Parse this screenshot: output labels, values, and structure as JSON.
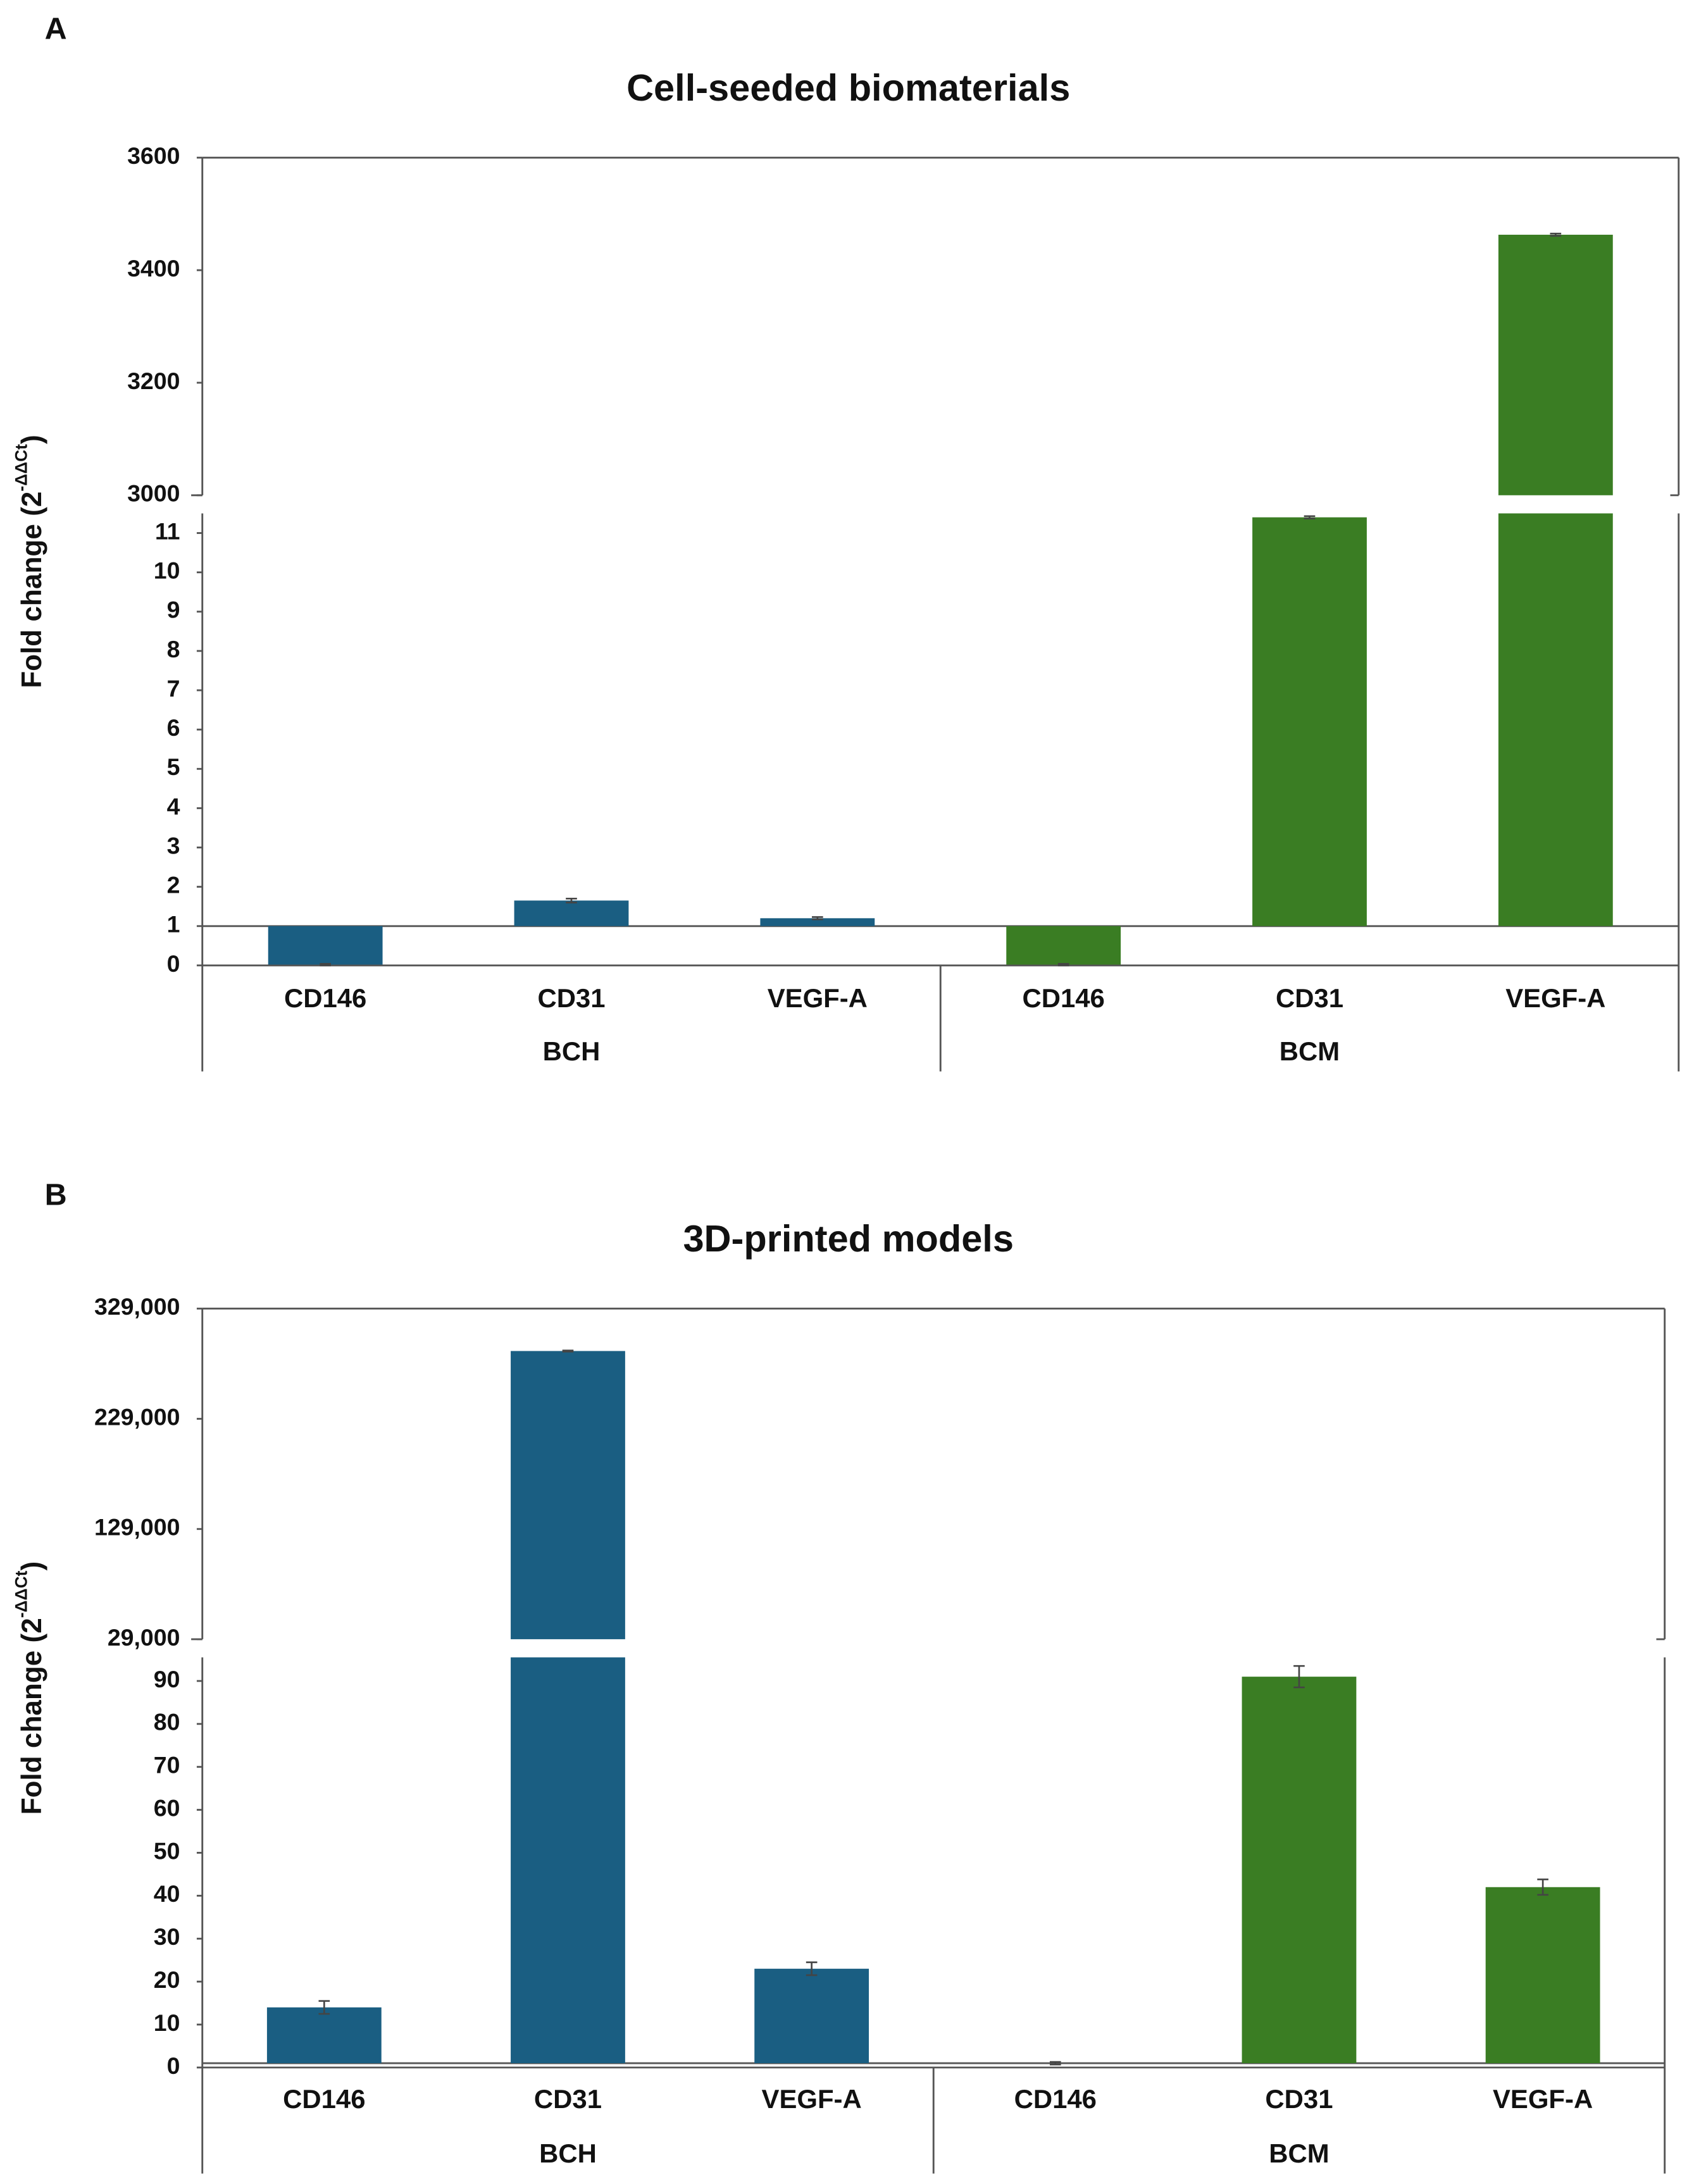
{
  "chart_data": [
    {
      "type": "broken-bar",
      "panel_label": "A",
      "title": "Cell-seeded biomaterials",
      "ylabel": "Fold change (2",
      "ylabel_sup": "-ΔΔCt",
      "ylabel_end": ")",
      "categories": [
        "CD146",
        "CD31",
        "VEGF-A"
      ],
      "series": [
        {
          "name": "BCH",
          "color": "#1a5e82",
          "values": [
            0.02,
            1.65,
            1.2
          ],
          "errors": [
            0.02,
            0.05,
            0.03
          ]
        },
        {
          "name": "BCM",
          "color": "#3a7d23",
          "values": [
            0.02,
            11.4,
            3463
          ],
          "errors": [
            0.02,
            0.03,
            2
          ]
        }
      ],
      "baseline": 1,
      "ylim": [
        0,
        11.5
      ],
      "yticks": [
        0,
        1,
        2,
        3,
        4,
        5,
        6,
        7,
        8,
        9,
        10,
        11
      ],
      "y2lim": [
        3000,
        3600
      ],
      "y2ticks": [
        3000,
        3200,
        3400,
        3600
      ]
    },
    {
      "type": "broken-bar",
      "panel_label": "B",
      "title": "3D-printed models",
      "ylabel": "Fold change (2",
      "ylabel_sup": "-ΔΔCt",
      "ylabel_end": ")",
      "categories": [
        "CD146",
        "CD31",
        "VEGF-A"
      ],
      "series": [
        {
          "name": "BCH",
          "color": "#1a5e82",
          "values": [
            14,
            290500,
            23
          ],
          "errors": [
            1.5,
            500,
            1.5
          ]
        },
        {
          "name": "BCM",
          "color": "#3a7d23",
          "values": [
            1,
            91,
            42
          ],
          "errors": [
            0.3,
            2.5,
            1.8
          ]
        }
      ],
      "baseline": 1,
      "ylim": [
        0,
        95.5
      ],
      "yticks": [
        0,
        10,
        20,
        30,
        40,
        50,
        60,
        70,
        80,
        90
      ],
      "y2lim": [
        29000,
        329000
      ],
      "y2ticks": [
        {
          "value": 29000,
          "label": "29,000"
        },
        {
          "value": 129000,
          "label": "129,000"
        },
        {
          "value": 229000,
          "label": "229,000"
        },
        {
          "value": 329000,
          "label": "329,000"
        }
      ]
    }
  ]
}
